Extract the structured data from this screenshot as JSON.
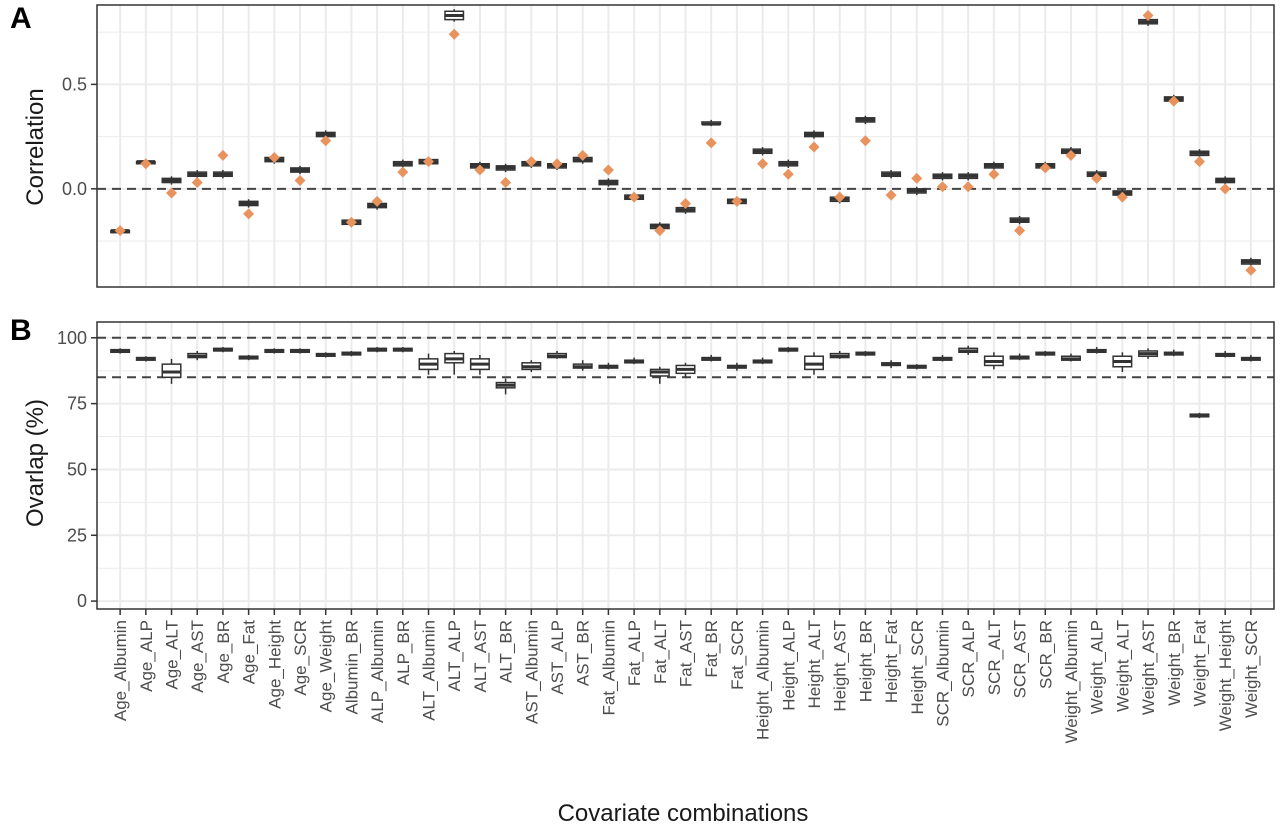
{
  "figure": {
    "x_axis_title": "Covariate combinations",
    "colors": {
      "box": "#333333",
      "box_fill": "#ffffff",
      "reference_point": "#e8935d",
      "dashed_line": "#444444",
      "grid": "#ebebeb",
      "panel_border": "#333333"
    }
  },
  "chart_data": [
    {
      "type": "box",
      "panel_label": "A",
      "title": "",
      "xlabel": "",
      "ylabel": "Correlation",
      "ylim": [
        -0.47,
        0.88
      ],
      "y_ticks": [
        0.0,
        0.5
      ],
      "y_tick_labels": [
        "0.0",
        "0.5"
      ],
      "reference_lines": [
        0.0
      ],
      "grid": true,
      "categories": [
        "Age_Albumin",
        "Age_ALP",
        "Age_ALT",
        "Age_AST",
        "Age_BR",
        "Age_Fat",
        "Age_Height",
        "Age_SCR",
        "Age_Weight",
        "Albumin_BR",
        "ALP_Albumin",
        "ALP_BR",
        "ALT_Albumin",
        "ALT_ALP",
        "ALT_AST",
        "ALT_BR",
        "AST_Albumin",
        "AST_ALP",
        "AST_BR",
        "Fat_Albumin",
        "Fat_ALP",
        "Fat_ALT",
        "Fat_AST",
        "Fat_BR",
        "Fat_SCR",
        "Height_Albumin",
        "Height_ALP",
        "Height_ALT",
        "Height_AST",
        "Height_BR",
        "Height_Fat",
        "Height_SCR",
        "SCR_Albumin",
        "SCR_ALP",
        "SCR_ALT",
        "SCR_AST",
        "SCR_BR",
        "Weight_Albumin",
        "Weight_ALP",
        "Weight_ALT",
        "Weight_AST",
        "Weight_BR",
        "Weight_Fat",
        "Weight_Height",
        "Weight_SCR"
      ],
      "series": [
        {
          "kind": "box",
          "median": [
            -0.2,
            0.13,
            0.04,
            0.07,
            0.07,
            -0.07,
            0.14,
            0.09,
            0.26,
            -0.16,
            -0.08,
            0.12,
            0.13,
            0.83,
            0.11,
            0.1,
            0.12,
            0.11,
            0.14,
            0.03,
            -0.04,
            -0.18,
            -0.1,
            0.31,
            -0.06,
            0.18,
            0.12,
            0.26,
            -0.05,
            0.33,
            0.07,
            -0.01,
            0.06,
            0.06,
            0.11,
            -0.15,
            0.11,
            0.18,
            0.07,
            -0.02,
            0.8,
            0.43,
            0.17,
            0.04,
            -0.35
          ],
          "q1": [
            -0.21,
            0.12,
            0.03,
            0.06,
            0.06,
            -0.08,
            0.13,
            0.08,
            0.25,
            -0.17,
            -0.09,
            0.11,
            0.12,
            0.81,
            0.1,
            0.09,
            0.11,
            0.1,
            0.13,
            0.02,
            -0.05,
            -0.19,
            -0.11,
            0.31,
            -0.07,
            0.17,
            0.11,
            0.25,
            -0.06,
            0.32,
            0.06,
            -0.02,
            0.05,
            0.05,
            0.1,
            -0.16,
            0.1,
            0.17,
            0.06,
            -0.03,
            0.79,
            0.42,
            0.16,
            0.03,
            -0.36
          ],
          "q3": [
            -0.2,
            0.13,
            0.05,
            0.08,
            0.08,
            -0.06,
            0.15,
            0.1,
            0.27,
            -0.15,
            -0.07,
            0.13,
            0.14,
            0.85,
            0.12,
            0.11,
            0.13,
            0.12,
            0.15,
            0.04,
            -0.03,
            -0.17,
            -0.09,
            0.32,
            -0.05,
            0.19,
            0.13,
            0.27,
            -0.04,
            0.34,
            0.08,
            0.0,
            0.07,
            0.07,
            0.12,
            -0.14,
            0.12,
            0.19,
            0.08,
            -0.01,
            0.81,
            0.44,
            0.18,
            0.05,
            -0.34
          ],
          "whisker_low": [
            -0.22,
            0.11,
            0.02,
            0.05,
            0.05,
            -0.09,
            0.12,
            0.07,
            0.24,
            -0.18,
            -0.1,
            0.1,
            0.11,
            0.8,
            0.09,
            0.08,
            0.1,
            0.09,
            0.12,
            0.01,
            -0.06,
            -0.2,
            -0.12,
            0.3,
            -0.08,
            0.16,
            0.1,
            0.24,
            -0.07,
            0.31,
            0.05,
            -0.03,
            0.04,
            0.04,
            0.09,
            -0.17,
            0.09,
            0.16,
            0.05,
            -0.04,
            0.78,
            0.41,
            0.15,
            0.02,
            -0.37
          ],
          "whisker_high": [
            -0.19,
            0.14,
            0.06,
            0.09,
            0.09,
            -0.05,
            0.16,
            0.11,
            0.28,
            -0.14,
            -0.06,
            0.14,
            0.15,
            0.86,
            0.13,
            0.12,
            0.14,
            0.13,
            0.16,
            0.05,
            -0.02,
            -0.16,
            -0.08,
            0.33,
            -0.04,
            0.2,
            0.14,
            0.28,
            -0.03,
            0.35,
            0.09,
            0.01,
            0.08,
            0.08,
            0.13,
            -0.13,
            0.13,
            0.2,
            0.09,
            0.0,
            0.82,
            0.45,
            0.19,
            0.06,
            -0.33
          ]
        },
        {
          "kind": "reference_point",
          "shape": "diamond",
          "values": [
            -0.2,
            0.12,
            -0.02,
            0.03,
            0.16,
            -0.12,
            0.15,
            0.04,
            0.23,
            -0.16,
            -0.06,
            0.08,
            0.13,
            0.74,
            0.09,
            0.03,
            0.13,
            0.12,
            0.16,
            0.09,
            -0.04,
            -0.2,
            -0.07,
            0.22,
            -0.06,
            0.12,
            0.07,
            0.2,
            -0.04,
            0.23,
            -0.03,
            0.05,
            0.01,
            0.01,
            0.07,
            -0.2,
            0.1,
            0.16,
            0.05,
            -0.04,
            0.83,
            0.42,
            0.13,
            0.0,
            -0.39
          ]
        }
      ]
    },
    {
      "type": "box",
      "panel_label": "B",
      "title": "",
      "xlabel": "",
      "ylabel": "Ovarlap (%)",
      "ylim": [
        -3,
        106
      ],
      "y_ticks": [
        0,
        25,
        50,
        75,
        100
      ],
      "y_tick_labels": [
        "0",
        "25",
        "50",
        "75",
        "100"
      ],
      "reference_lines": [
        85,
        100
      ],
      "grid": true,
      "categories": [
        "Age_Albumin",
        "Age_ALP",
        "Age_ALT",
        "Age_AST",
        "Age_BR",
        "Age_Fat",
        "Age_Height",
        "Age_SCR",
        "Age_Weight",
        "Albumin_BR",
        "ALP_Albumin",
        "ALP_BR",
        "ALT_Albumin",
        "ALT_ALP",
        "ALT_AST",
        "ALT_BR",
        "AST_Albumin",
        "AST_ALP",
        "AST_BR",
        "Fat_Albumin",
        "Fat_ALP",
        "Fat_ALT",
        "Fat_AST",
        "Fat_BR",
        "Fat_SCR",
        "Height_Albumin",
        "Height_ALP",
        "Height_ALT",
        "Height_AST",
        "Height_BR",
        "Height_Fat",
        "Height_SCR",
        "SCR_Albumin",
        "SCR_ALP",
        "SCR_ALT",
        "SCR_AST",
        "SCR_BR",
        "Weight_Albumin",
        "Weight_ALP",
        "Weight_ALT",
        "Weight_AST",
        "Weight_BR",
        "Weight_Fat",
        "Weight_Height",
        "Weight_SCR"
      ],
      "series": [
        {
          "kind": "box",
          "median": [
            95.0,
            92.0,
            87.0,
            93.0,
            95.5,
            92.5,
            95.0,
            95.0,
            93.5,
            94.0,
            95.5,
            95.5,
            90.0,
            92.0,
            90.0,
            82.0,
            89.0,
            93.0,
            89.0,
            89.0,
            91.0,
            87.0,
            88.0,
            92.0,
            89.0,
            91.0,
            95.5,
            90.0,
            93.0,
            94.0,
            90.0,
            89.0,
            92.0,
            95.0,
            91.0,
            92.5,
            94.0,
            92.0,
            95.0,
            91.0,
            94.0,
            94.0,
            70.5,
            93.5,
            92.0
          ],
          "q1": [
            94.5,
            91.5,
            85.0,
            92.5,
            95.0,
            92.0,
            94.5,
            94.5,
            93.0,
            93.5,
            95.0,
            95.0,
            88.0,
            90.5,
            88.0,
            81.0,
            88.0,
            92.5,
            88.5,
            88.5,
            90.5,
            85.5,
            86.5,
            91.5,
            88.5,
            90.5,
            95.0,
            88.0,
            92.5,
            93.5,
            89.5,
            88.5,
            91.5,
            94.5,
            89.5,
            92.0,
            93.5,
            91.5,
            94.5,
            89.0,
            93.0,
            93.5,
            70.0,
            93.0,
            91.5
          ],
          "q3": [
            95.5,
            92.5,
            90.0,
            94.0,
            96.0,
            93.0,
            95.5,
            95.5,
            94.0,
            94.5,
            96.0,
            96.0,
            92.0,
            94.0,
            92.0,
            83.0,
            90.5,
            94.0,
            90.0,
            89.5,
            91.5,
            88.0,
            89.5,
            92.5,
            89.5,
            91.5,
            96.0,
            93.0,
            94.0,
            94.5,
            90.5,
            89.5,
            92.5,
            96.0,
            93.0,
            93.0,
            94.5,
            93.0,
            95.5,
            93.0,
            95.0,
            94.5,
            71.0,
            94.0,
            92.5
          ],
          "whisker_low": [
            94.0,
            91.0,
            82.5,
            91.5,
            94.5,
            91.5,
            94.0,
            94.0,
            92.5,
            93.0,
            94.5,
            94.5,
            86.0,
            86.0,
            86.0,
            78.5,
            87.0,
            92.0,
            87.5,
            88.0,
            90.0,
            82.5,
            85.0,
            91.0,
            87.5,
            90.0,
            94.5,
            86.0,
            92.0,
            93.0,
            88.5,
            88.0,
            91.0,
            93.5,
            88.0,
            91.5,
            93.0,
            91.0,
            94.0,
            87.0,
            92.0,
            93.0,
            69.5,
            92.5,
            91.0
          ],
          "whisker_high": [
            96.0,
            93.0,
            92.0,
            95.0,
            96.5,
            93.5,
            96.0,
            96.0,
            94.5,
            95.0,
            96.5,
            96.5,
            94.0,
            95.0,
            93.5,
            84.5,
            91.5,
            95.0,
            91.5,
            90.5,
            92.5,
            89.0,
            90.5,
            93.5,
            90.5,
            92.5,
            96.5,
            94.5,
            95.0,
            95.0,
            91.5,
            90.0,
            93.5,
            97.0,
            94.5,
            94.0,
            95.0,
            94.0,
            96.5,
            94.5,
            96.0,
            95.5,
            71.5,
            95.0,
            93.5
          ]
        }
      ]
    }
  ]
}
